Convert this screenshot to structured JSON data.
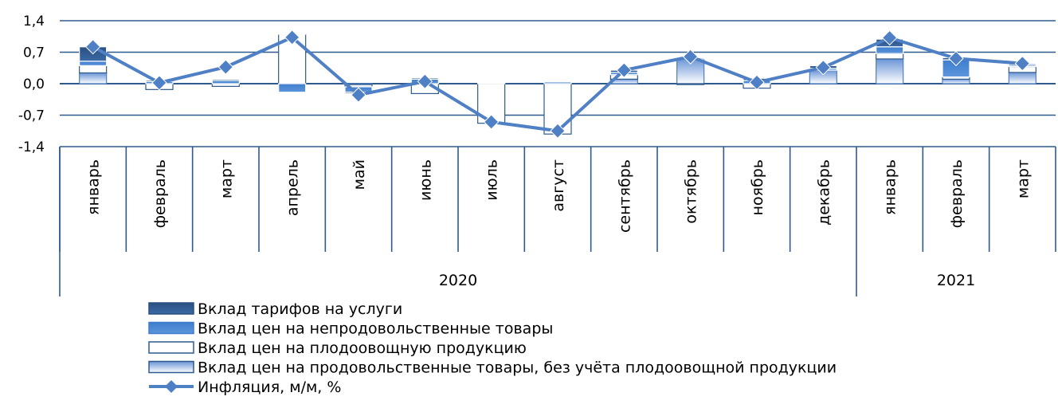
{
  "chart_data": {
    "type": "bar",
    "ylim": [
      -1.4,
      1.4
    ],
    "y_ticks": [
      "1,4",
      "0,7",
      "0,0",
      "-0,7",
      "-1,4"
    ],
    "y_tick_values": [
      1.4,
      0.7,
      0.0,
      -0.7,
      -1.4
    ],
    "gridlines": "horizontal",
    "categories": [
      "январь",
      "февраль",
      "март",
      "апрель",
      "май",
      "июнь",
      "июль",
      "август",
      "сентябрь",
      "октябрь",
      "ноябрь",
      "декабрь",
      "январь",
      "февраль",
      "март"
    ],
    "year_groups": [
      {
        "label": "2020",
        "span": 12
      },
      {
        "label": "2021",
        "span": 3
      }
    ],
    "legend_placement": "bottom",
    "series": [
      {
        "name": "Вклад цен на продовольственные товары, без учёта плодоовощной продукции",
        "kind": "bar",
        "style": "food",
        "color": "#7aa3dc",
        "values": [
          0.24,
          0.0,
          0.0,
          0.0,
          -0.02,
          0.0,
          0.0,
          0.0,
          0.1,
          0.55,
          0.0,
          0.3,
          0.55,
          0.1,
          0.25
        ]
      },
      {
        "name": "Вклад цен на плодоовощную продукцию",
        "kind": "bar",
        "style": "veg",
        "color": "#ffffff",
        "values": [
          0.16,
          -0.13,
          -0.06,
          1.1,
          -0.05,
          -0.22,
          -0.88,
          -1.12,
          0.1,
          -0.02,
          -0.1,
          0.0,
          0.12,
          0.05,
          0.13
        ]
      },
      {
        "name": "Вклад цен на непродовольственные товары",
        "kind": "bar",
        "style": "nonfood",
        "color": "#4a86d0",
        "values": [
          0.1,
          0.05,
          0.07,
          -0.19,
          -0.12,
          0.1,
          0.02,
          0.04,
          0.05,
          0.03,
          0.07,
          0.04,
          0.15,
          0.38,
          0.03
        ]
      },
      {
        "name": "Вклад тарифов на услуги",
        "kind": "bar",
        "style": "services",
        "color": "#2e5a8e",
        "values": [
          0.32,
          0.03,
          0.03,
          0.02,
          -0.03,
          0.03,
          0.02,
          0.02,
          0.05,
          0.02,
          0.05,
          0.06,
          0.17,
          0.05,
          0.03
        ]
      },
      {
        "name": "Инфляция, м/м, %",
        "kind": "line",
        "style": "line",
        "color": "#4f7fc4",
        "values": [
          0.82,
          0.02,
          0.37,
          1.03,
          -0.25,
          0.05,
          -0.85,
          -1.05,
          0.3,
          0.6,
          0.03,
          0.36,
          1.02,
          0.56,
          0.45
        ]
      }
    ],
    "legend": [
      {
        "label": "Вклад тарифов на услуги",
        "style": "services"
      },
      {
        "label": "Вклад цен на непродовольственные товары",
        "style": "nonfood"
      },
      {
        "label": "Вклад цен на плодоовощную продукцию",
        "style": "veg"
      },
      {
        "label": "Вклад цен на продовольственные товары, без учёта плодоовощной продукции",
        "style": "food"
      },
      {
        "label": "Инфляция, м/м, %",
        "style": "line"
      }
    ]
  }
}
